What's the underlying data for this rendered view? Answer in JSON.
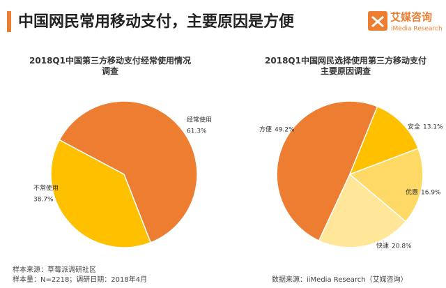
{
  "header": {
    "title": "中国网民常用移动支付，主要原因是方便",
    "logo_cn": "艾媒咨询",
    "logo_en": "iMedia Research"
  },
  "chart_data": [
    {
      "type": "pie",
      "title": "2018Q1中国第三方移动支付经常使用情况调查",
      "categories": [
        "经常使用",
        "不常使用"
      ],
      "values": [
        61.3,
        38.7
      ],
      "value_labels": [
        "61.3%",
        "38.7%"
      ],
      "colors": [
        "#ed7d31",
        "#ffc000"
      ]
    },
    {
      "type": "pie",
      "title": "2018Q1中国网民选择使用第三方移动支付主要原因调查",
      "categories": [
        "方便",
        "安全",
        "优惠",
        "快速"
      ],
      "values": [
        49.2,
        13.1,
        16.9,
        20.8
      ],
      "value_labels": [
        "49.2%",
        "13.1%",
        "16.9%",
        "20.8%"
      ],
      "colors": [
        "#ed7d31",
        "#ffc000",
        "#ffd966",
        "#ffe699"
      ]
    }
  ],
  "footnotes": {
    "sample_source": "样本来源：草莓派调研社区",
    "sample_size": "样本量：N=2218；调研日期：2018年4月",
    "data_source": "数据来源：iiMedia Research（艾媒咨询）"
  }
}
